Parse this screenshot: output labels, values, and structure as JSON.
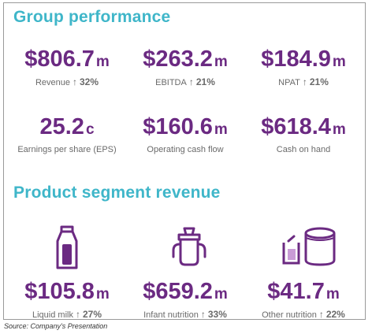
{
  "group_performance": {
    "title": "Group performance",
    "metrics": [
      {
        "value": "$806.7",
        "unit": "m",
        "label": "Revenue",
        "change": "32%"
      },
      {
        "value": "$263.2",
        "unit": "m",
        "label": "EBITDA",
        "change": "21%"
      },
      {
        "value": "$184.9",
        "unit": "m",
        "label": "NPAT",
        "change": "21%"
      },
      {
        "value": "25.2",
        "unit": "c",
        "label": "Earnings per share (EPS)",
        "change": ""
      },
      {
        "value": "$160.6",
        "unit": "m",
        "label": "Operating cash flow",
        "change": ""
      },
      {
        "value": "$618.4",
        "unit": "m",
        "label": "Cash on hand",
        "change": ""
      }
    ]
  },
  "product_segment": {
    "title": "Product segment revenue",
    "segments": [
      {
        "icon": "milk-bottle-icon",
        "value": "$105.8",
        "unit": "m",
        "label": "Liquid milk",
        "change": "27%"
      },
      {
        "icon": "sippy-cup-icon",
        "value": "$659.2",
        "unit": "m",
        "label": "Infant nutrition",
        "change": "33%"
      },
      {
        "icon": "powder-can-icon",
        "value": "$41.7",
        "unit": "m",
        "label": "Other nutrition",
        "change": "22%"
      }
    ]
  },
  "source": "Source: Company's Presentation",
  "colors": {
    "accent_title": "#3fb6c9",
    "value_purple": "#6b2a82",
    "label_gray": "#6a6a6a"
  },
  "arrow_glyph": "↑"
}
